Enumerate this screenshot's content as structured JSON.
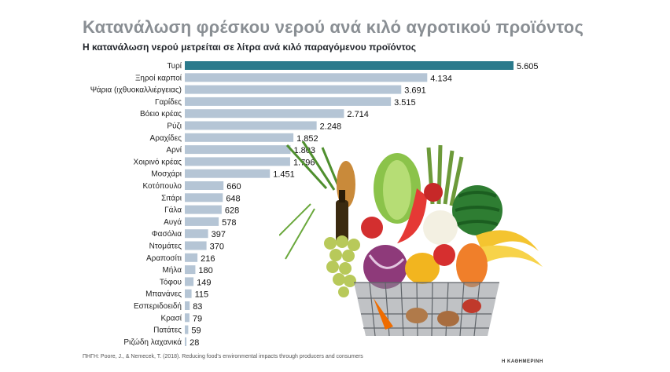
{
  "title": "Κατανάλωση φρέσκου νερού ανά κιλό αγροτικού προϊόντος",
  "subtitle": "Η κατανάλωση νερού μετρείται σε λίτρα ανά κιλό παραγόμενου προϊόντος",
  "source": "ΠΗΓΗ: Poore, J., & Nemecek, T. (2018). Reducing food's environmental impacts through producers and consumers",
  "brand": "Η ΚΑΘΗΜΕΡΙΝΗ",
  "colors": {
    "highlight": "#2b7a8c",
    "bar": "#b5c5d5",
    "title": "#8a8f94"
  },
  "chart_data": {
    "type": "bar",
    "orientation": "horizontal",
    "title": "Κατανάλωση φρέσκου νερού ανά κιλό αγροτικού προϊόντος",
    "subtitle": "Η κατανάλωση νερού μετρείται σε λίτρα ανά κιλό παραγόμενου προϊόντος",
    "categories": [
      "Τυρί",
      "Ξηροί καρποί",
      "Ψάρια (ιχθυοκαλλιέργειας)",
      "Γαρίδες",
      "Βόειο κρέας",
      "Ρύζι",
      "Αραχίδες",
      "Αρνί",
      "Χοιρινό κρέας",
      "Μοσχάρι",
      "Κοτόπουλο",
      "Σιτάρι",
      "Γάλα",
      "Αυγά",
      "Φασόλια",
      "Ντομάτες",
      "Αραποσίτι",
      "Μήλα",
      "Τόφου",
      "Μπανάνες",
      "Εσπεριδοειδή",
      "Κρασί",
      "Πατάτες",
      "Ριζώδη λαχανικά"
    ],
    "values": [
      5605,
      4134,
      3691,
      3515,
      2714,
      2248,
      1852,
      1803,
      1796,
      1451,
      660,
      648,
      628,
      578,
      397,
      370,
      216,
      180,
      149,
      115,
      83,
      79,
      59,
      28
    ],
    "labels": [
      "5.605",
      "4.134",
      "3.691",
      "3.515",
      "2.714",
      "2.248",
      "1.852",
      "1.803",
      "1.796",
      "1.451",
      "660",
      "648",
      "628",
      "578",
      "397",
      "370",
      "216",
      "180",
      "149",
      "115",
      "83",
      "79",
      "59",
      "28"
    ],
    "xlim": [
      0,
      5605
    ],
    "xlabel": "",
    "ylabel": "",
    "grid": false,
    "legend": "none",
    "highlighted_category": "Τυρί"
  }
}
